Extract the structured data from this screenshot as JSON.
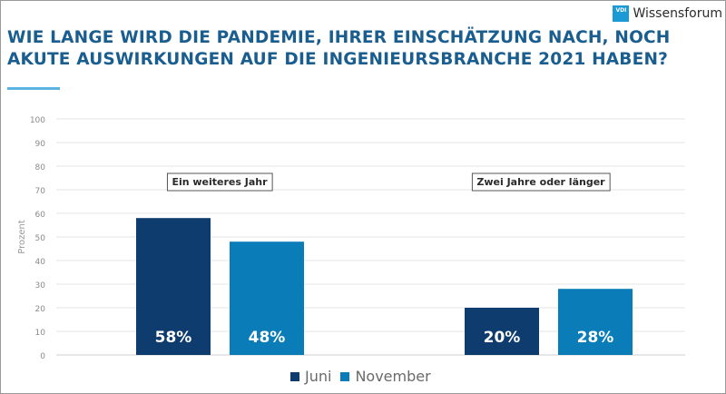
{
  "brand": {
    "badge": "VDI",
    "name": "Wissensforum",
    "badge_color": "#1b9ad6"
  },
  "chart_data": {
    "type": "bar",
    "title": "WIE LANGE WIRD DIE PANDEMIE, IHRER EINSCHÄTZUNG NACH, NOCH AKUTE AUSWIRKUNGEN AUF DIE INGENIEURSBRANCHE 2021 HABEN?",
    "ylabel": "Prozent",
    "xlabel": "",
    "ylim": [
      0,
      100
    ],
    "yticks": [
      0,
      10,
      20,
      30,
      40,
      50,
      60,
      70,
      80,
      90,
      100
    ],
    "grid": true,
    "legend_position": "bottom",
    "categories": [
      "Ein weiteres Jahr",
      "Zwei Jahre oder länger"
    ],
    "series": [
      {
        "name": "Juni",
        "color": "#0e3c6e",
        "values": [
          58,
          20
        ],
        "labels": [
          "58%",
          "20%"
        ]
      },
      {
        "name": "November",
        "color": "#0a7cb8",
        "values": [
          48,
          28
        ],
        "labels": [
          "48%",
          "28%"
        ]
      }
    ]
  }
}
